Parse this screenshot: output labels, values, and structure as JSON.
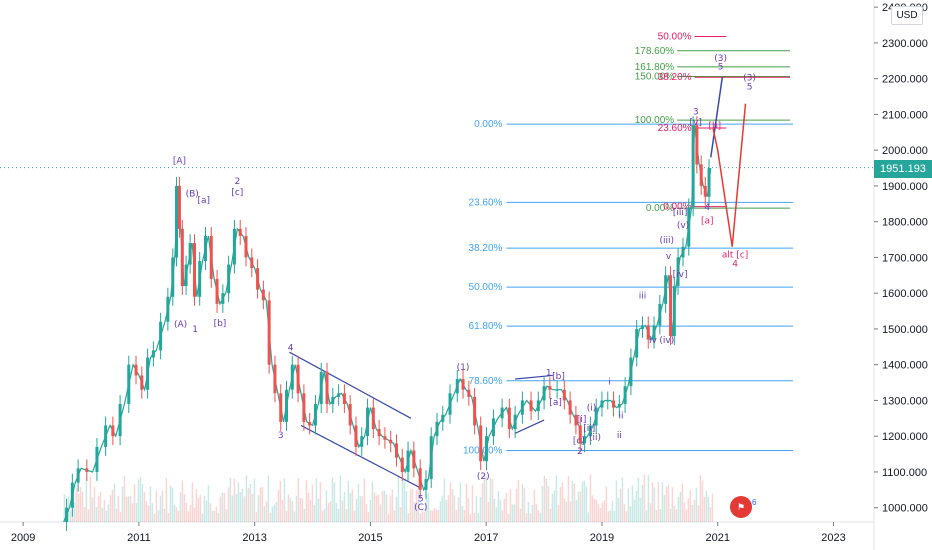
{
  "chart_data": {
    "type": "line",
    "currency": "USD",
    "current_price": "1951.193",
    "y_ticks": [
      "2400.000",
      "2300.000",
      "2200.000",
      "2100.000",
      "2000.000",
      "1900.000",
      "1800.000",
      "1700.000",
      "1600.000",
      "1500.000",
      "1400.000",
      "1300.000",
      "1200.000",
      "1100.000",
      "1000.000"
    ],
    "x_ticks": [
      "2009",
      "2011",
      "2013",
      "2015",
      "2017",
      "2019",
      "2021",
      "2023"
    ],
    "ylim": [
      960,
      2420
    ],
    "xlim": [
      2008.6,
      2023.7
    ],
    "series": [
      {
        "values": [
          [
            2009.7,
            960
          ],
          [
            2009.8,
            1000
          ],
          [
            2009.9,
            1070
          ],
          [
            2010.0,
            1110
          ],
          [
            2010.2,
            1100
          ],
          [
            2010.35,
            1170
          ],
          [
            2010.5,
            1230
          ],
          [
            2010.6,
            1200
          ],
          [
            2010.75,
            1290
          ],
          [
            2010.9,
            1400
          ],
          [
            2011.0,
            1370
          ],
          [
            2011.1,
            1330
          ],
          [
            2011.2,
            1420
          ],
          [
            2011.3,
            1440
          ],
          [
            2011.45,
            1520
          ],
          [
            2011.55,
            1590
          ],
          [
            2011.62,
            1700
          ],
          [
            2011.68,
            1900
          ],
          [
            2011.72,
            1780
          ],
          [
            2011.78,
            1620
          ],
          [
            2011.85,
            1680
          ],
          [
            2011.92,
            1740
          ],
          [
            2012.0,
            1590
          ],
          [
            2012.1,
            1690
          ],
          [
            2012.2,
            1760
          ],
          [
            2012.3,
            1640
          ],
          [
            2012.4,
            1570
          ],
          [
            2012.5,
            1600
          ],
          [
            2012.6,
            1680
          ],
          [
            2012.7,
            1780
          ],
          [
            2012.8,
            1760
          ],
          [
            2012.9,
            1700
          ],
          [
            2013.0,
            1670
          ],
          [
            2013.1,
            1610
          ],
          [
            2013.2,
            1580
          ],
          [
            2013.3,
            1400
          ],
          [
            2013.4,
            1320
          ],
          [
            2013.5,
            1240
          ],
          [
            2013.6,
            1330
          ],
          [
            2013.7,
            1400
          ],
          [
            2013.8,
            1320
          ],
          [
            2013.9,
            1240
          ],
          [
            2014.0,
            1230
          ],
          [
            2014.1,
            1290
          ],
          [
            2014.2,
            1380
          ],
          [
            2014.3,
            1290
          ],
          [
            2014.4,
            1310
          ],
          [
            2014.5,
            1320
          ],
          [
            2014.6,
            1290
          ],
          [
            2014.7,
            1230
          ],
          [
            2014.8,
            1170
          ],
          [
            2014.9,
            1200
          ],
          [
            2015.0,
            1280
          ],
          [
            2015.1,
            1220
          ],
          [
            2015.2,
            1200
          ],
          [
            2015.3,
            1190
          ],
          [
            2015.4,
            1180
          ],
          [
            2015.5,
            1140
          ],
          [
            2015.6,
            1100
          ],
          [
            2015.7,
            1160
          ],
          [
            2015.8,
            1110
          ],
          [
            2015.92,
            1050
          ],
          [
            2016.0,
            1080
          ],
          [
            2016.1,
            1200
          ],
          [
            2016.2,
            1240
          ],
          [
            2016.3,
            1260
          ],
          [
            2016.45,
            1320
          ],
          [
            2016.55,
            1360
          ],
          [
            2016.65,
            1330
          ],
          [
            2016.75,
            1310
          ],
          [
            2016.85,
            1230
          ],
          [
            2016.96,
            1130
          ],
          [
            2017.05,
            1200
          ],
          [
            2017.2,
            1250
          ],
          [
            2017.35,
            1280
          ],
          [
            2017.45,
            1220
          ],
          [
            2017.55,
            1260
          ],
          [
            2017.7,
            1300
          ],
          [
            2017.85,
            1270
          ],
          [
            2017.95,
            1300
          ],
          [
            2018.05,
            1340
          ],
          [
            2018.15,
            1330
          ],
          [
            2018.3,
            1330
          ],
          [
            2018.4,
            1300
          ],
          [
            2018.5,
            1260
          ],
          [
            2018.6,
            1230
          ],
          [
            2018.65,
            1180
          ],
          [
            2018.75,
            1200
          ],
          [
            2018.85,
            1230
          ],
          [
            2018.95,
            1280
          ],
          [
            2019.05,
            1300
          ],
          [
            2019.15,
            1300
          ],
          [
            2019.25,
            1280
          ],
          [
            2019.35,
            1290
          ],
          [
            2019.45,
            1340
          ],
          [
            2019.55,
            1420
          ],
          [
            2019.65,
            1500
          ],
          [
            2019.75,
            1510
          ],
          [
            2019.85,
            1470
          ],
          [
            2019.95,
            1510
          ],
          [
            2020.05,
            1570
          ],
          [
            2020.15,
            1650
          ],
          [
            2020.22,
            1480
          ],
          [
            2020.28,
            1620
          ],
          [
            2020.35,
            1700
          ],
          [
            2020.45,
            1730
          ],
          [
            2020.55,
            1840
          ],
          [
            2020.6,
            2070
          ],
          [
            2020.68,
            1960
          ],
          [
            2020.75,
            1900
          ],
          [
            2020.82,
            1870
          ],
          [
            2020.88,
            1950
          ]
        ]
      }
    ]
  },
  "annotations": {
    "fib_right": [
      {
        "label": "50.00%",
        "color": "#e91e63",
        "price": 2318,
        "x1": 2020.6,
        "x2": 2021.15
      },
      {
        "label": "178.60%",
        "color": "#43a047",
        "price": 2278,
        "x1": 2020.3,
        "x2": 2022.25
      },
      {
        "label": "161.80%",
        "color": "#43a047",
        "price": 2233,
        "x1": 2020.3,
        "x2": 2022.25
      },
      {
        "label": "150.00%",
        "color": "#43a047",
        "price": 2206,
        "x1": 2020.3,
        "x2": 2022.25
      },
      {
        "label": "38.20%",
        "color": "#e91e63",
        "price": 2204,
        "x1": 2020.6,
        "x2": 2022.25
      },
      {
        "label": "100.00%",
        "color": "#43a047",
        "price": 2084,
        "x1": 2020.3,
        "x2": 2022.25
      },
      {
        "label": "23.60%",
        "color": "#e91e63",
        "price": 2062,
        "x1": 2020.6,
        "x2": 2021.15
      },
      {
        "label": "0.00%",
        "color": "#43a047",
        "price": 1838,
        "x1": 2020.3,
        "x2": 2022.25
      },
      {
        "label": "0.00%",
        "color": "#e91e63",
        "price": 1842,
        "x1": 2020.6,
        "x2": 2021.15
      }
    ],
    "fib_left": [
      {
        "label": "0.00%",
        "price": 2073
      },
      {
        "label": "23.60%",
        "price": 1854
      },
      {
        "label": "38.20%",
        "price": 1726
      },
      {
        "label": "50.00%",
        "price": 1617
      },
      {
        "label": "61.80%",
        "price": 1508
      },
      {
        "label": "78.60%",
        "price": 1355
      },
      {
        "label": "100.00%",
        "price": 1160
      }
    ],
    "wave_labels": [
      {
        "text": "[A]",
        "x": 2011.7,
        "price": 1963,
        "color": "#673ab7"
      },
      {
        "text": "(B)",
        "x": 2011.92,
        "price": 1870,
        "color": "#673ab7",
        "big": true
      },
      {
        "text": "[a]",
        "x": 2012.12,
        "price": 1852,
        "color": "#673ab7"
      },
      {
        "text": "2",
        "x": 2012.7,
        "price": 1905,
        "color": "#673ab7"
      },
      {
        "text": "[c]",
        "x": 2012.7,
        "price": 1875,
        "color": "#673ab7"
      },
      {
        "text": "(A)",
        "x": 2011.72,
        "price": 1505,
        "color": "#673ab7"
      },
      {
        "text": "1",
        "x": 2011.97,
        "price": 1492,
        "color": "#673ab7"
      },
      {
        "text": "[b]",
        "x": 2012.4,
        "price": 1508,
        "color": "#673ab7"
      },
      {
        "text": "4",
        "x": 2013.62,
        "price": 1440,
        "color": "#673ab7"
      },
      {
        "text": "3",
        "x": 2013.45,
        "price": 1195,
        "color": "#673ab7"
      },
      {
        "text": "5",
        "x": 2015.87,
        "price": 1018,
        "color": "#673ab7"
      },
      {
        "text": "(C)",
        "x": 2015.87,
        "price": 993,
        "color": "#673ab7"
      },
      {
        "text": "(1)",
        "x": 2016.6,
        "price": 1385,
        "color": "#673ab7"
      },
      {
        "text": "(2)",
        "x": 2016.95,
        "price": 1080,
        "color": "#673ab7"
      },
      {
        "text": "1",
        "x": 2018.08,
        "price": 1370,
        "color": "#673ab7"
      },
      {
        "text": "[b]",
        "x": 2018.25,
        "price": 1360,
        "color": "#673ab7"
      },
      {
        "text": "[a]",
        "x": 2018.2,
        "price": 1287,
        "color": "#673ab7"
      },
      {
        "text": "[i]",
        "x": 2018.65,
        "price": 1240,
        "color": "#673ab7"
      },
      {
        "text": "[ii]",
        "x": 2018.78,
        "price": 1215,
        "color": "#673ab7"
      },
      {
        "text": "[c]",
        "x": 2018.6,
        "price": 1180,
        "color": "#673ab7"
      },
      {
        "text": "2",
        "x": 2018.62,
        "price": 1150,
        "color": "#673ab7"
      },
      {
        "text": "(i)",
        "x": 2018.82,
        "price": 1272,
        "color": "#673ab7"
      },
      {
        "text": "(ii)",
        "x": 2018.88,
        "price": 1190,
        "color": "#673ab7"
      },
      {
        "text": "i",
        "x": 2019.13,
        "price": 1345,
        "color": "#673ab7"
      },
      {
        "text": "ii",
        "x": 2019.33,
        "price": 1250,
        "color": "#673ab7"
      },
      {
        "text": "iii",
        "x": 2019.7,
        "price": 1585,
        "color": "#673ab7"
      },
      {
        "text": "iv",
        "x": 2019.88,
        "price": 1460,
        "color": "#673ab7"
      },
      {
        "text": "(iv)",
        "x": 2020.12,
        "price": 1460,
        "color": "#673ab7"
      },
      {
        "text": "v",
        "x": 2020.15,
        "price": 1695,
        "color": "#673ab7"
      },
      {
        "text": "(iii)",
        "x": 2020.12,
        "price": 1740,
        "color": "#673ab7"
      },
      {
        "text": "[iv]",
        "x": 2020.35,
        "price": 1645,
        "color": "#673ab7"
      },
      {
        "text": "(v)",
        "x": 2020.4,
        "price": 1782,
        "color": "#673ab7"
      },
      {
        "text": "[iii]",
        "x": 2020.35,
        "price": 1818,
        "color": "#673ab7"
      },
      {
        "text": "3",
        "x": 2020.62,
        "price": 2100,
        "color": "#673ab7"
      },
      {
        "text": "[v]",
        "x": 2020.62,
        "price": 2070,
        "color": "#673ab7"
      },
      {
        "text": "4",
        "x": 2020.82,
        "price": 1832,
        "color": "#673ab7"
      },
      {
        "text": "[a]",
        "x": 2020.82,
        "price": 1795,
        "color": "#e91e63"
      },
      {
        "text": "[b]",
        "x": 2020.95,
        "price": 2060,
        "color": "#e91e63"
      },
      {
        "text": "(3)",
        "x": 2021.05,
        "price": 2250,
        "color": "#673ab7"
      },
      {
        "text": "5",
        "x": 2021.05,
        "price": 2225,
        "color": "#673ab7"
      },
      {
        "text": "(3)",
        "x": 2021.55,
        "price": 2195,
        "color": "#673ab7"
      },
      {
        "text": "5",
        "x": 2021.55,
        "price": 2170,
        "color": "#673ab7"
      },
      {
        "text": "alt [c]",
        "x": 2021.3,
        "price": 1700,
        "color": "#e91e63"
      },
      {
        "text": "4",
        "x": 2021.3,
        "price": 1675,
        "color": "#e91e63"
      },
      {
        "text": "ii",
        "x": 2019.3,
        "price": 1195,
        "color": "#673ab7"
      }
    ],
    "badge": "6"
  }
}
